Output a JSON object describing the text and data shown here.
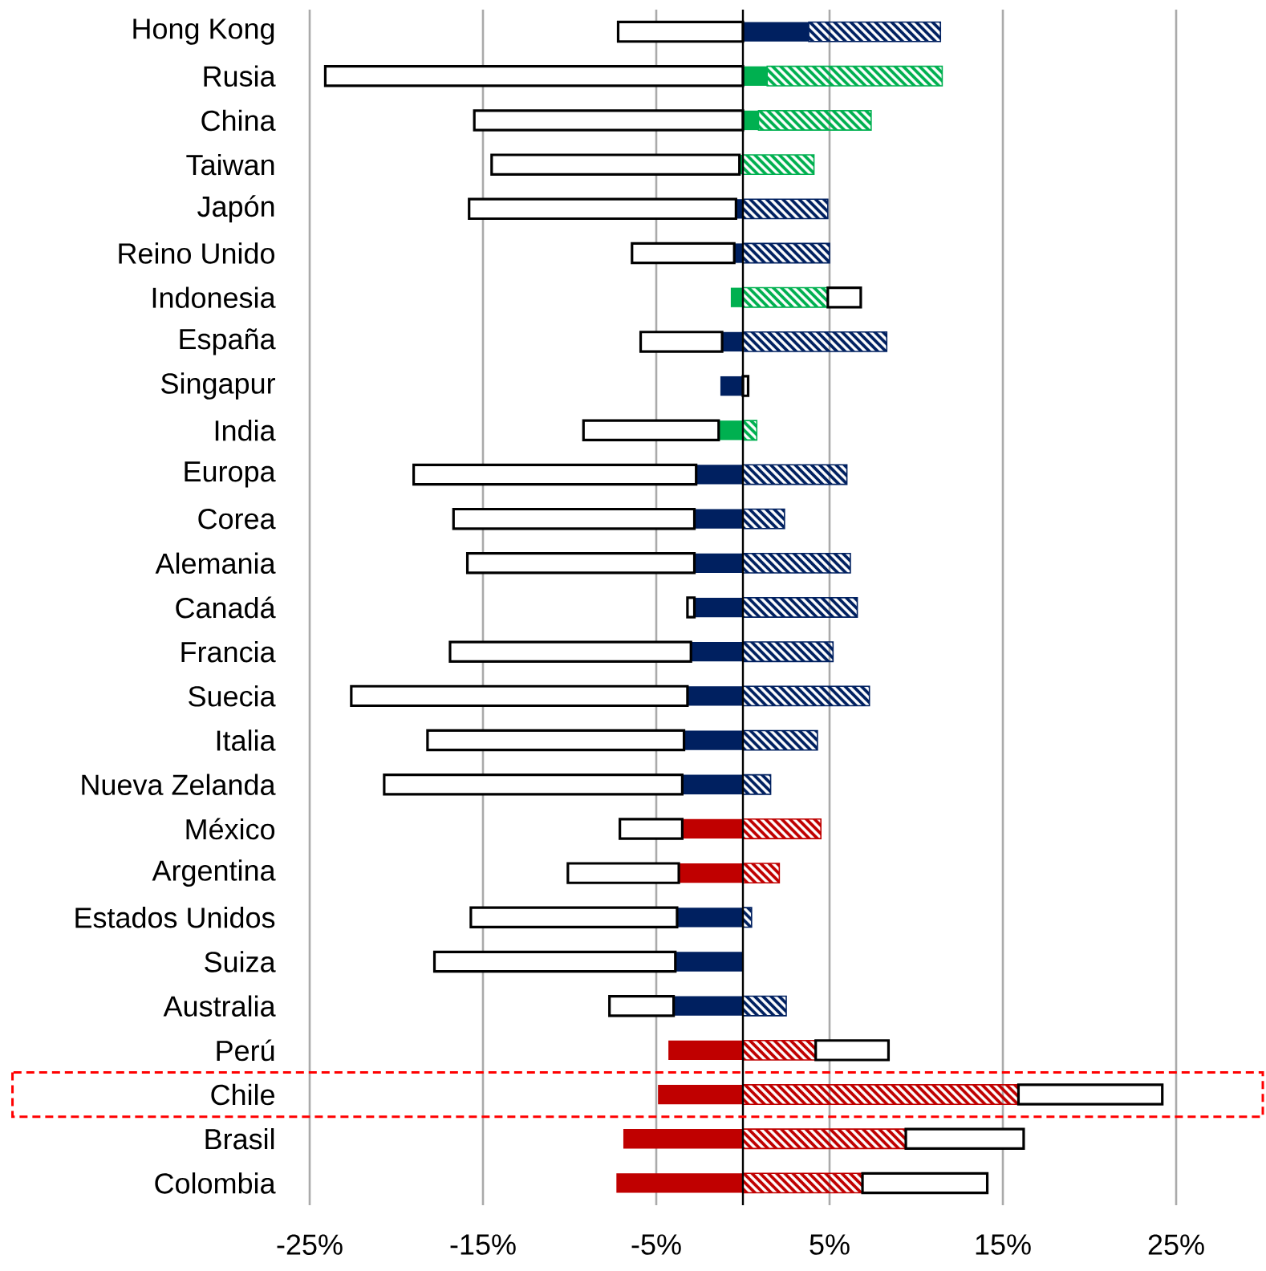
{
  "chart_data": {
    "type": "bar",
    "orientation": "horizontal",
    "stacked": true,
    "categories": [
      "Hong Kong",
      "Rusia",
      "China",
      "Taiwan",
      "Japón",
      "Reino Unido",
      "Indonesia",
      "España",
      "Singapur",
      "India",
      "Europa",
      "Corea",
      "Alemania",
      "Canadá",
      "Francia",
      "Suecia",
      "Italia",
      "Nueva Zelanda",
      "México",
      "Argentina",
      "Estados Unidos",
      "Suiza",
      "Australia",
      "Perú",
      "Chile",
      "Brasil",
      "Colombia"
    ],
    "series": [
      {
        "colors": [
          "#002060",
          "#00b050",
          "#00b050",
          "#00b050",
          "#002060",
          "#002060",
          "#00b050",
          "#002060",
          "#002060",
          "#00b050",
          "#002060",
          "#002060",
          "#002060",
          "#002060",
          "#002060",
          "#002060",
          "#002060",
          "#002060",
          "#c00000",
          "#c00000",
          "#002060",
          "#002060",
          "#002060",
          "#c00000",
          "#c00000",
          "#c00000",
          "#c00000"
        ],
        "values": [
          3.8,
          1.4,
          0.9,
          -0.2,
          -0.4,
          -0.5,
          -0.7,
          -1.2,
          -1.3,
          -1.4,
          -2.7,
          -2.8,
          -2.8,
          -2.8,
          -3.0,
          -3.2,
          -3.4,
          -3.5,
          -3.5,
          -3.7,
          -3.8,
          -3.9,
          -4.0,
          -4.3,
          -4.9,
          -6.9,
          -7.3
        ]
      },
      {
        "colors": [
          "#002060",
          "#00b050",
          "#00b050",
          "#00b050",
          "#002060",
          "#002060",
          "#00b050",
          "#002060",
          "#002060",
          "#00b050",
          "#002060",
          "#002060",
          "#002060",
          "#002060",
          "#002060",
          "#002060",
          "#002060",
          "#002060",
          "#c00000",
          "#c00000",
          "#002060",
          "#002060",
          "#002060",
          "#c00000",
          "#c00000",
          "#c00000",
          "#c00000"
        ],
        "values": [
          7.6,
          10.1,
          6.5,
          4.1,
          4.9,
          5.0,
          4.9,
          8.3,
          null,
          0.8,
          6.0,
          2.4,
          6.2,
          6.6,
          5.2,
          7.3,
          4.3,
          1.6,
          4.5,
          2.1,
          0.5,
          null,
          2.5,
          4.2,
          15.9,
          9.4,
          6.9
        ]
      },
      {
        "color": "#ffffff",
        "values": [
          -7.2,
          -24.1,
          -15.5,
          -14.3,
          -15.4,
          -5.9,
          1.9,
          -4.7,
          0.3,
          -7.8,
          -16.3,
          -13.9,
          -13.1,
          -0.4,
          -13.9,
          -19.4,
          -14.8,
          -17.2,
          -3.6,
          -6.4,
          -11.9,
          -13.9,
          -3.7,
          4.2,
          8.3,
          6.8,
          7.2
        ]
      }
    ],
    "xlim": [
      -25,
      25
    ],
    "xticks": [
      {
        "value": -25,
        "label": "-25%"
      },
      {
        "value": -15,
        "label": "-15%"
      },
      {
        "value": -5,
        "label": "-5%"
      },
      {
        "value": 5,
        "label": "5%"
      },
      {
        "value": 15,
        "label": "15%"
      },
      {
        "value": 25,
        "label": "25%"
      }
    ],
    "grid": "x",
    "ref_lines": [
      {
        "axis": "x",
        "value": 0,
        "color": "#000000"
      }
    ]
  }
}
